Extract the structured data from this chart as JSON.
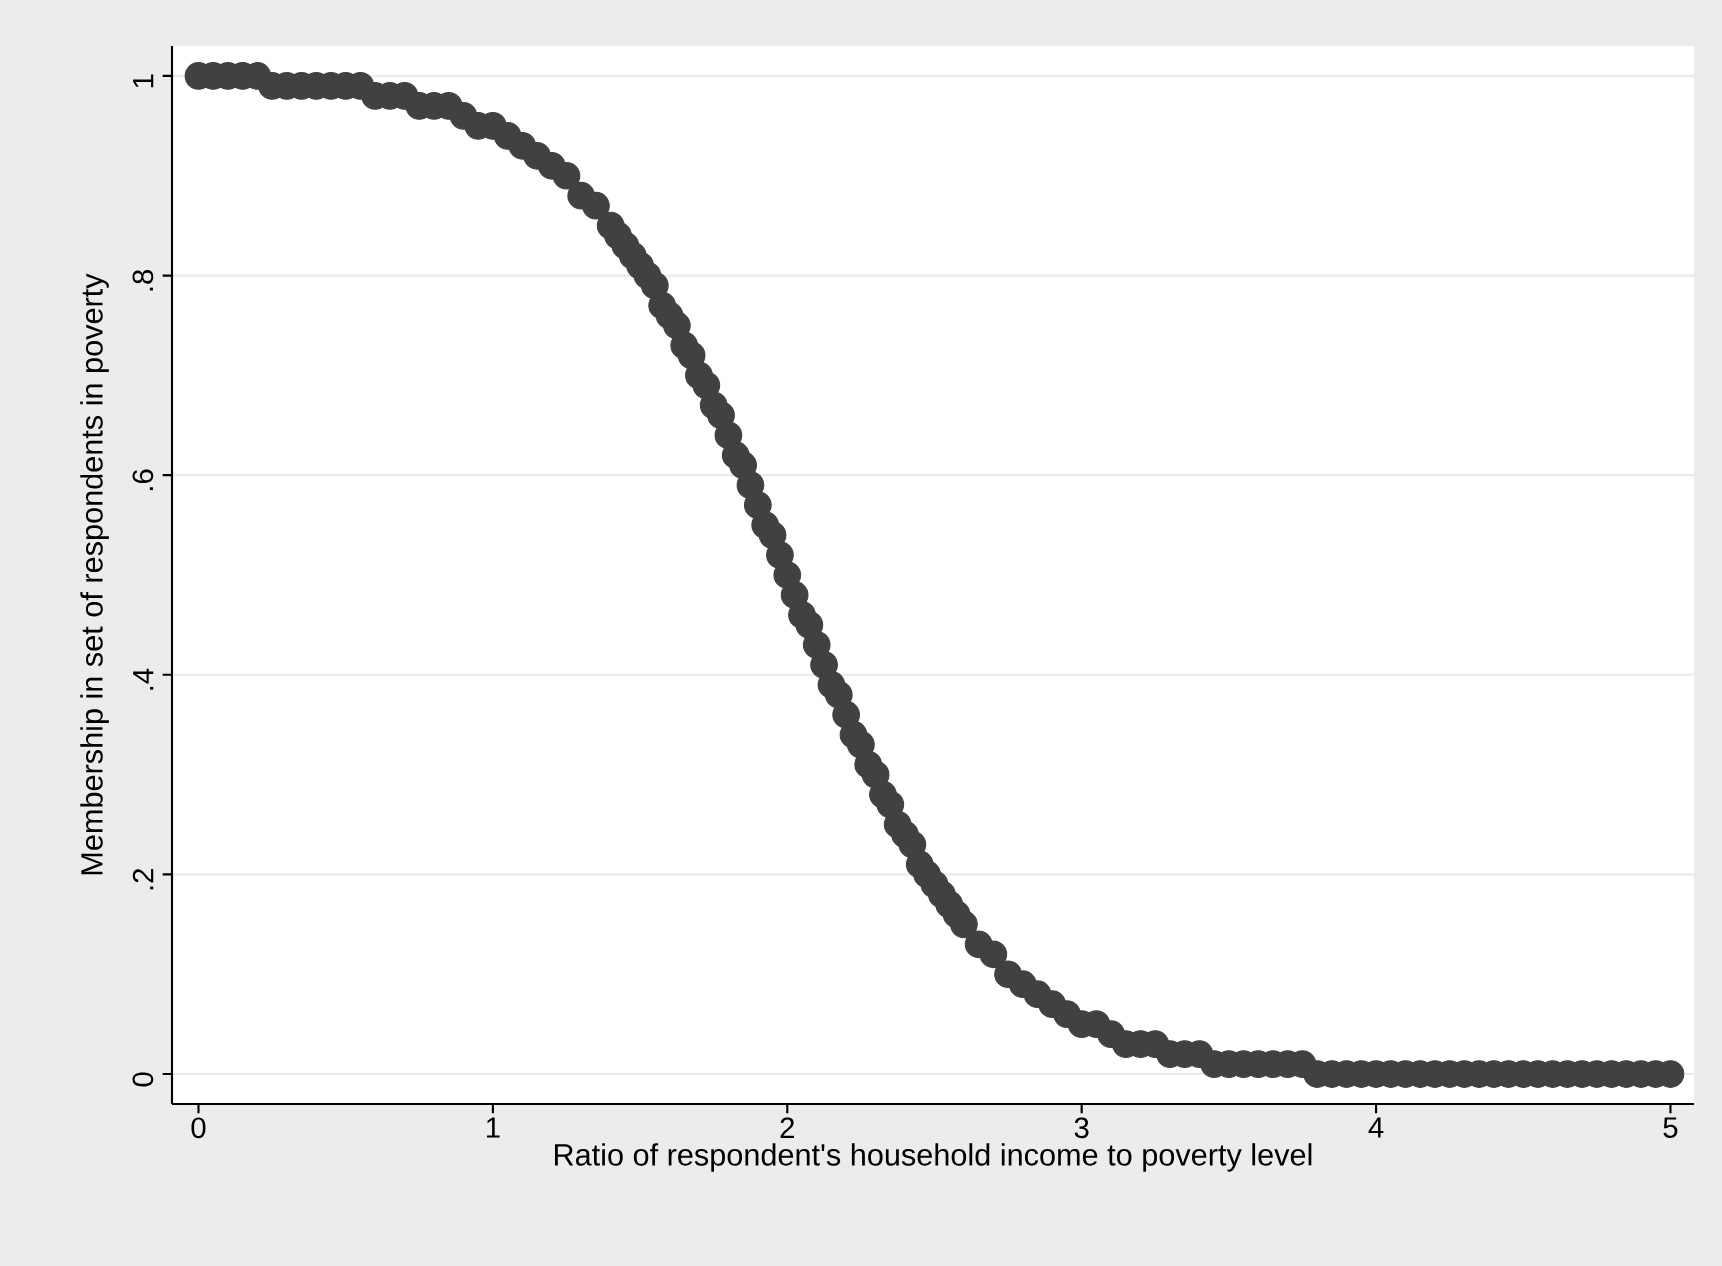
{
  "chart_data": {
    "type": "scatter",
    "xlabel": "Ratio of respondent's household income to poverty level",
    "ylabel": "Membership in set of respondents in poverty",
    "x": [
      0,
      0.05,
      0.1,
      0.15,
      0.2,
      0.25,
      0.3,
      0.35,
      0.4,
      0.45,
      0.5,
      0.55,
      0.6,
      0.65,
      0.7,
      0.75,
      0.8,
      0.85,
      0.9,
      0.95,
      1.0,
      1.05,
      1.1,
      1.15,
      1.2,
      1.25,
      1.3,
      1.35,
      1.4,
      1.425,
      1.45,
      1.475,
      1.5,
      1.525,
      1.55,
      1.575,
      1.6,
      1.625,
      1.65,
      1.675,
      1.7,
      1.725,
      1.75,
      1.775,
      1.8,
      1.825,
      1.85,
      1.875,
      1.9,
      1.925,
      1.95,
      1.975,
      2.0,
      2.025,
      2.05,
      2.075,
      2.1,
      2.125,
      2.15,
      2.175,
      2.2,
      2.225,
      2.25,
      2.275,
      2.3,
      2.325,
      2.35,
      2.375,
      2.4,
      2.425,
      2.45,
      2.475,
      2.5,
      2.525,
      2.55,
      2.575,
      2.6,
      2.65,
      2.7,
      2.75,
      2.8,
      2.85,
      2.9,
      2.95,
      3.0,
      3.05,
      3.1,
      3.15,
      3.2,
      3.25,
      3.3,
      3.35,
      3.4,
      3.45,
      3.5,
      3.55,
      3.6,
      3.65,
      3.7,
      3.75,
      3.8,
      3.85,
      3.9,
      3.95,
      4.0,
      4.05,
      4.1,
      4.15,
      4.2,
      4.25,
      4.3,
      4.35,
      4.4,
      4.45,
      4.5,
      4.55,
      4.6,
      4.65,
      4.7,
      4.75,
      4.8,
      4.85,
      4.9,
      4.95,
      5.0
    ],
    "series": [
      {
        "color": "#414141",
        "values": [
          1,
          1,
          1,
          1,
          1,
          0.99,
          0.99,
          0.99,
          0.99,
          0.99,
          0.99,
          0.99,
          0.98,
          0.98,
          0.98,
          0.97,
          0.97,
          0.97,
          0.96,
          0.95,
          0.95,
          0.94,
          0.93,
          0.92,
          0.91,
          0.9,
          0.88,
          0.87,
          0.85,
          0.84,
          0.83,
          0.82,
          0.81,
          0.8,
          0.79,
          0.77,
          0.76,
          0.75,
          0.73,
          0.72,
          0.7,
          0.69,
          0.67,
          0.66,
          0.64,
          0.62,
          0.61,
          0.59,
          0.57,
          0.55,
          0.54,
          0.52,
          0.5,
          0.48,
          0.46,
          0.45,
          0.43,
          0.41,
          0.39,
          0.38,
          0.36,
          0.34,
          0.33,
          0.31,
          0.3,
          0.28,
          0.27,
          0.25,
          0.24,
          0.23,
          0.21,
          0.2,
          0.19,
          0.18,
          0.17,
          0.16,
          0.15,
          0.13,
          0.12,
          0.1,
          0.09,
          0.08,
          0.07,
          0.06,
          0.05,
          0.05,
          0.04,
          0.03,
          0.03,
          0.03,
          0.02,
          0.02,
          0.02,
          0.01,
          0.01,
          0.01,
          0.01,
          0.01,
          0.01,
          0.01,
          0,
          0,
          0,
          0,
          0,
          0,
          0,
          0,
          0,
          0,
          0,
          0,
          0,
          0,
          0,
          0,
          0,
          0,
          0,
          0,
          0,
          0,
          0,
          0,
          0
        ]
      }
    ],
    "xlim": [
      -0.09,
      5.08
    ],
    "ylim": [
      -0.03,
      1.03
    ],
    "xticks": [
      0,
      1,
      2,
      3,
      4,
      5
    ],
    "yticks": [
      0,
      {
        "value": 0.2,
        "label": ".2"
      },
      {
        "value": 0.4,
        "label": ".4"
      },
      {
        "value": 0.6,
        "label": ".6"
      },
      {
        "value": 0.8,
        "label": ".8"
      },
      1
    ],
    "grid": "y",
    "marker": "circle"
  }
}
